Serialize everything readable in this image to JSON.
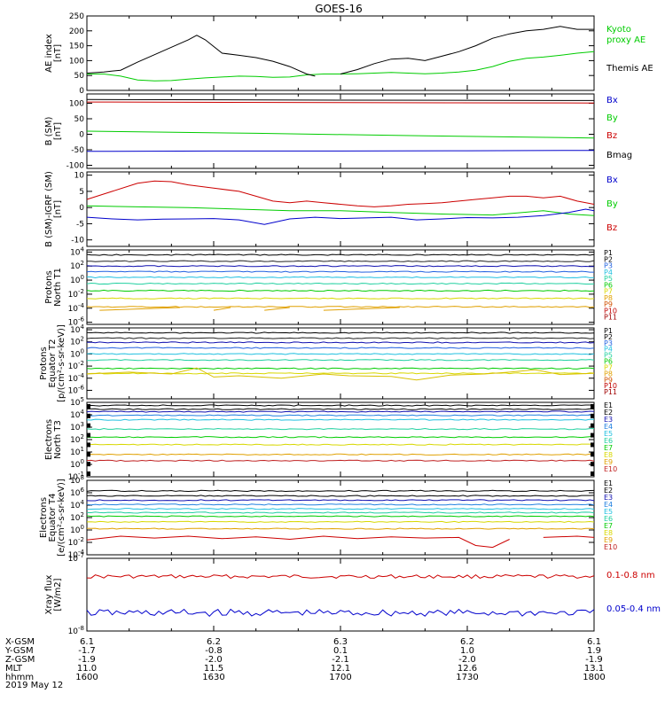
{
  "colors": {
    "black": "#000000",
    "green": "#00cc00",
    "blue": "#0000cc",
    "red": "#cc0000",
    "p": [
      "#000000",
      "#222222",
      "#1010b0",
      "#2060e0",
      "#20c0e0",
      "#20d0a0",
      "#00cc00",
      "#d8d800",
      "#e0a000",
      "#d05000",
      "#c00000",
      "#a00000"
    ],
    "e": [
      "#000000",
      "#000000",
      "#1010b0",
      "#2080e0",
      "#20c0e0",
      "#20d0a0",
      "#00cc00",
      "#d8d800",
      "#e0a000",
      "#c02020",
      "#a00000"
    ]
  },
  "chart_data": [
    {
      "type": "line",
      "title": "GOES-16",
      "ylabel": [
        "AE index",
        "[nT]"
      ],
      "ylim": [
        0,
        250
      ],
      "yticks": [
        0,
        50,
        100,
        150,
        200,
        250
      ],
      "legend": [
        {
          "text": "Kyoto",
          "color": "#00cc00"
        },
        {
          "text": "proxy AE",
          "color": "#00cc00"
        },
        {
          "text": "Themis AE",
          "color": "#000000"
        }
      ],
      "series": [
        {
          "name": "Kyoto proxy AE",
          "color": "#00cc00",
          "x": [
            0,
            4,
            8,
            12,
            16,
            20,
            24,
            28,
            32,
            36,
            40,
            44,
            48,
            52,
            56,
            60,
            64,
            68,
            72,
            76,
            80,
            84,
            88,
            92,
            96,
            100,
            104,
            108,
            112,
            116,
            120
          ],
          "values": [
            55,
            55,
            48,
            35,
            32,
            33,
            38,
            42,
            45,
            48,
            47,
            44,
            45,
            52,
            55,
            55,
            56,
            58,
            60,
            58,
            56,
            58,
            62,
            68,
            80,
            98,
            108,
            112,
            118,
            125,
            130
          ]
        },
        {
          "name": "Themis AE",
          "color": "#000000",
          "x": [
            0,
            4,
            8,
            12,
            16,
            20,
            24,
            26,
            28,
            32,
            36,
            40,
            44,
            48,
            52,
            54,
            56,
            60,
            64,
            68,
            72,
            76,
            80,
            84,
            88,
            92,
            96,
            100,
            104,
            108,
            112,
            116,
            120
          ],
          "values": [
            58,
            62,
            68,
            95,
            120,
            145,
            170,
            185,
            170,
            125,
            118,
            110,
            98,
            80,
            55,
            48,
            null,
            55,
            70,
            90,
            105,
            108,
            100,
            115,
            130,
            150,
            175,
            190,
            200,
            205,
            215,
            205,
            205
          ]
        }
      ]
    },
    {
      "type": "line",
      "ylabel": [
        "B (SM)",
        "[nT]"
      ],
      "ylim": [
        -110,
        130
      ],
      "yticks": [
        -100,
        -50,
        0,
        50,
        100
      ],
      "legend": [
        {
          "text": "Bx",
          "color": "#0000cc"
        },
        {
          "text": "By",
          "color": "#00cc00"
        },
        {
          "text": "Bz",
          "color": "#cc0000"
        },
        {
          "text": "Bmag",
          "color": "#000000"
        }
      ],
      "series": [
        {
          "name": "Bmag",
          "color": "#000000",
          "x": [
            0,
            60,
            120
          ],
          "values": [
            112,
            110,
            109
          ]
        },
        {
          "name": "Bz",
          "color": "#cc0000",
          "x": [
            0,
            60,
            120
          ],
          "values": [
            104,
            102,
            101
          ]
        },
        {
          "name": "By",
          "color": "#00cc00",
          "x": [
            0,
            40,
            80,
            120
          ],
          "values": [
            10,
            3,
            -5,
            -12
          ]
        },
        {
          "name": "Bx",
          "color": "#0000cc",
          "x": [
            0,
            30,
            60,
            90,
            120
          ],
          "values": [
            -55,
            -54,
            -54,
            -53,
            -52
          ]
        }
      ]
    },
    {
      "type": "line",
      "ylabel": [
        "B (SM)-IGRF (SM)",
        "[nT]"
      ],
      "ylim": [
        -12,
        11
      ],
      "yticks": [
        -10,
        -5,
        0,
        5,
        10
      ],
      "legend": [
        {
          "text": "Bx",
          "color": "#0000cc"
        },
        {
          "text": "By",
          "color": "#00cc00"
        },
        {
          "text": "Bz",
          "color": "#cc0000"
        }
      ],
      "series": [
        {
          "name": "Bz",
          "color": "#cc0000",
          "x": [
            0,
            6,
            12,
            16,
            20,
            24,
            30,
            36,
            40,
            44,
            48,
            52,
            56,
            60,
            64,
            68,
            72,
            76,
            80,
            84,
            88,
            92,
            96,
            100,
            104,
            108,
            112,
            116,
            120
          ],
          "values": [
            2.5,
            5,
            7.5,
            8.2,
            8,
            7,
            6,
            5,
            3.5,
            2,
            1.5,
            2,
            1.5,
            1,
            0.5,
            0.2,
            0.5,
            1,
            1.2,
            1.5,
            2,
            2.5,
            3,
            3.5,
            3.5,
            3,
            3.5,
            2,
            1
          ]
        },
        {
          "name": "By",
          "color": "#00cc00",
          "x": [
            0,
            12,
            24,
            36,
            48,
            60,
            72,
            84,
            96,
            108,
            114,
            120
          ],
          "values": [
            0.5,
            0.2,
            0,
            -0.5,
            -1,
            -1,
            -1.5,
            -2,
            -2.3,
            -1,
            -2,
            -2.5
          ]
        },
        {
          "name": "Bx",
          "color": "#0000cc",
          "x": [
            0,
            6,
            12,
            18,
            24,
            30,
            36,
            42,
            48,
            54,
            60,
            66,
            72,
            78,
            84,
            90,
            96,
            102,
            108,
            114,
            118,
            120
          ],
          "values": [
            -3,
            -3.5,
            -3.8,
            -3.6,
            -3.5,
            -3.4,
            -3.8,
            -5.2,
            -3.5,
            -3,
            -3.4,
            -3.2,
            -3,
            -3.8,
            -3.5,
            -3.1,
            -3.2,
            -3,
            -2.5,
            -1.5,
            -0.5,
            -1
          ]
        }
      ]
    },
    {
      "type": "line",
      "ylabel": [
        "Protons",
        "North T1"
      ],
      "ylim_log10": [
        -6.3,
        4.3
      ],
      "yticks": [
        "10^4",
        "10^2",
        "10^0",
        "10^-2",
        "10^-4",
        "10^-6"
      ],
      "yticks_log10": [
        4,
        2,
        0,
        -2,
        -4,
        -6
      ],
      "legend": [
        "P1",
        "P2",
        "P3",
        "P4",
        "P5",
        "P6",
        "P7",
        "P8",
        "P9",
        "P10",
        "P11"
      ],
      "series_log10": [
        3.6,
        2.7,
        2.0,
        1.2,
        0.4,
        -0.5,
        -1.5,
        -2.6,
        -3.8
      ],
      "gap_series_log10": {
        "value": -4.2,
        "segments": [
          [
            3,
            22
          ],
          [
            30,
            34
          ],
          [
            42,
            48
          ],
          [
            56,
            74
          ]
        ]
      }
    },
    {
      "type": "line",
      "ylabel": [
        "Protons",
        "Equator T2",
        "[p/(cm²-s-sr-keV)]"
      ],
      "ylim_log10": [
        -7.4,
        4.3
      ],
      "yticks": [
        "10^4",
        "10^2",
        "10^0",
        "10^-2",
        "10^-4",
        "10^-6"
      ],
      "yticks_log10": [
        4,
        2,
        0,
        -2,
        -4,
        -6
      ],
      "legend": [
        "P1",
        "P2",
        "P3",
        "P4",
        "P5",
        "P6",
        "P7",
        "P8",
        "P9",
        "P10",
        "P11"
      ],
      "series_log10": [
        3.5,
        2.6,
        1.9,
        1.0,
        0.0,
        -1.0,
        -2.4,
        -3.2
      ],
      "wiggle_series_log10": {
        "value": -4.0,
        "x": [
          0,
          10,
          20,
          26,
          30,
          36,
          46,
          56,
          62,
          72,
          78,
          86,
          94,
          100,
          106,
          112,
          120
        ],
        "values": [
          -3.3,
          -3.0,
          -3.3,
          -2.3,
          -3.8,
          -3.6,
          -4.0,
          -3.3,
          -3.6,
          -3.7,
          -4.3,
          -3.5,
          -3.3,
          -3.0,
          -2.6,
          -3.4,
          -3.2
        ]
      }
    },
    {
      "type": "line",
      "ylabel": [
        "Electrons",
        "North T3"
      ],
      "ylim_log10": [
        -1,
        5
      ],
      "yticks": [
        "10^5",
        "10^4",
        "10^3",
        "10^2",
        "10^1",
        "10^0",
        "10^-1"
      ],
      "yticks_log10": [
        5,
        4,
        3,
        2,
        1,
        0,
        -1
      ],
      "legend": [
        "E1",
        "E2",
        "E3",
        "E4",
        "E5",
        "E6",
        "E7",
        "E8",
        "E9",
        "E10"
      ],
      "series_log10": [
        4.75,
        4.45,
        4.25,
        3.95,
        3.6,
        2.85,
        2.2,
        1.6,
        0.8,
        0.3
      ]
    },
    {
      "type": "line",
      "ylabel": [
        "Electrons",
        "Equator T4",
        "[e/(cm²-s-sr-keV)]"
      ],
      "ylim_log10": [
        -4,
        8
      ],
      "yticks": [
        "10^8",
        "10^6",
        "10^4",
        "10^2",
        "10^0",
        "10^-2",
        "10^-4"
      ],
      "yticks_log10": [
        8,
        6,
        4,
        2,
        0,
        -2,
        -4
      ],
      "legend": [
        "E1",
        "E2",
        "E3",
        "E4",
        "E5",
        "E6",
        "E7",
        "E8",
        "E9",
        "E10"
      ],
      "series_log10": [
        6.3,
        5.5,
        4.8,
        4.1,
        3.4,
        2.8,
        2.2,
        1.3,
        0.2
      ],
      "gap_series_log10": {
        "x": [
          0,
          8,
          16,
          24,
          32,
          40,
          48,
          56,
          64,
          72,
          80,
          88,
          92,
          96,
          100,
          null,
          108,
          116,
          120
        ],
        "values": [
          -1.6,
          -1.0,
          -1.3,
          -1.0,
          -1.4,
          -1.1,
          -1.5,
          -1.0,
          -1.4,
          -1.1,
          -1.3,
          -1.2,
          -2.5,
          -2.8,
          -1.5,
          null,
          -1.2,
          -1.0,
          -1.2
        ]
      }
    },
    {
      "type": "line",
      "ylabel": [
        "Xray flux",
        "[W/m2]"
      ],
      "ylim_log10": [
        -8,
        -7
      ],
      "yticks": [
        "10^-7",
        "10^-8"
      ],
      "yticks_log10": [
        -7,
        -8
      ],
      "legend": [
        {
          "text": "0.1-0.8 nm",
          "color": "#cc0000"
        },
        {
          "text": "0.05-0.4 nm",
          "color": "#0000cc"
        }
      ],
      "series": [
        {
          "name": "0.1-0.8 nm",
          "color": "#cc0000",
          "level_log10": -7.25,
          "noise": 0.025
        },
        {
          "name": "0.05-0.4 nm",
          "color": "#0000cc",
          "level_log10": -7.75,
          "noise": 0.05
        }
      ]
    }
  ],
  "x_axis": {
    "tick_positions_min": [
      0,
      30,
      60,
      90,
      120
    ],
    "rows": [
      {
        "label": "X-GSM",
        "values": [
          "6.1",
          "6.2",
          "6.3",
          "6.2",
          "6.1"
        ]
      },
      {
        "label": "Y-GSM",
        "values": [
          "-1.7",
          "-0.8",
          "0.1",
          "1.0",
          "1.9"
        ]
      },
      {
        "label": "Z-GSM",
        "values": [
          "-1.9",
          "-2.0",
          "-2.1",
          "-2.0",
          "-1.9"
        ]
      },
      {
        "label": "MLT",
        "values": [
          "11.0",
          "11.5",
          "12.1",
          "12.6",
          "13.1"
        ]
      },
      {
        "label": "hhmm",
        "values": [
          "1600",
          "1630",
          "1700",
          "1730",
          "1800"
        ]
      }
    ],
    "date": "2019 May 12"
  }
}
